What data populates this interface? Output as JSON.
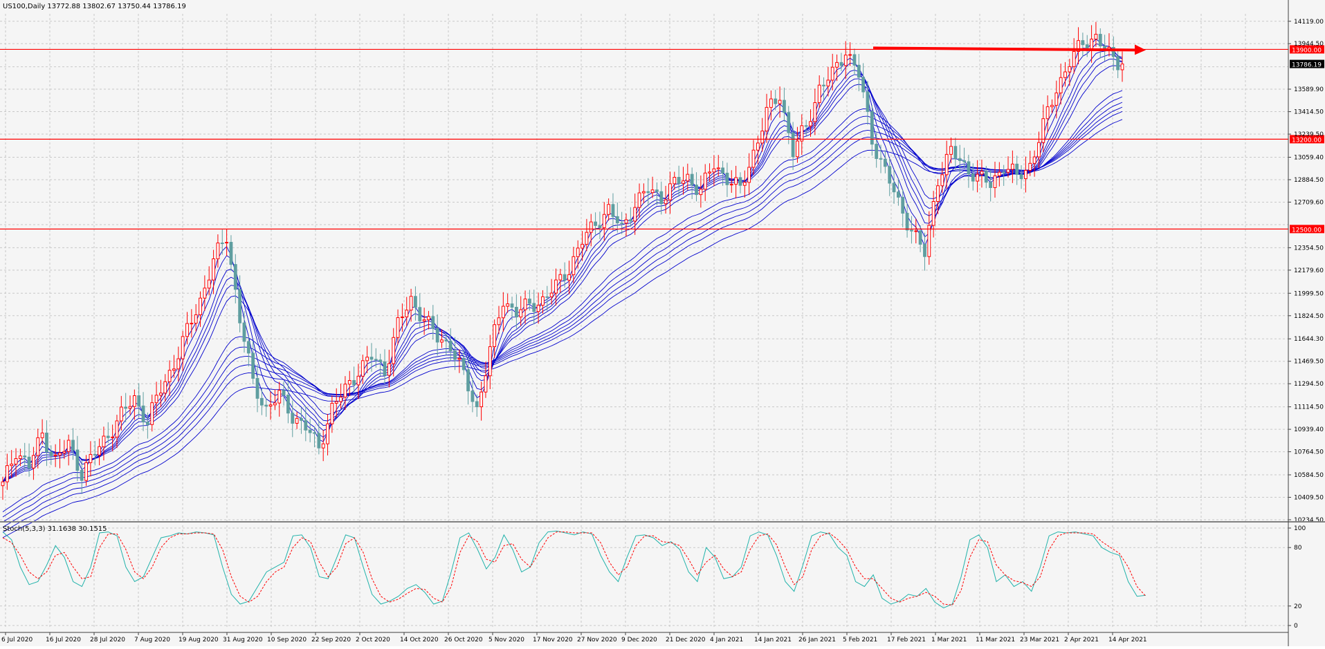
{
  "header": {
    "symbol_line": "US100,Daily  13772.88 13802.67 13750.44 13786.19"
  },
  "stoch_header": "Stoch(5,3,3) 31.1638 30.1515",
  "colors": {
    "background": "#f5f5f5",
    "grid": "#c8c8c8",
    "bull_candle": "#ff0000",
    "bear_candle": "#5f9ea0",
    "ma_lines": "#0000cc",
    "level_lines": "#ff0000",
    "stoch_main": "#20b2aa",
    "stoch_signal": "#ff0000"
  },
  "chart_data": [
    {
      "type": "candlestick",
      "title": "US100,Daily",
      "ylim": [
        10234.5,
        14150
      ],
      "y_ticks": [
        "14119.00",
        "13944.50",
        "13764.40",
        "13589.90",
        "13414.50",
        "13239.50",
        "13059.40",
        "12884.50",
        "12709.60",
        "12534.40",
        "12354.50",
        "12179.60",
        "11999.50",
        "11824.50",
        "11644.30",
        "11469.50",
        "11294.50",
        "11114.50",
        "10939.40",
        "10764.50",
        "10584.50",
        "10409.50",
        "10234.50"
      ],
      "x_ticks": [
        "6 Jul 2020",
        "16 Jul 2020",
        "28 Jul 2020",
        "7 Aug 2020",
        "19 Aug 2020",
        "31 Aug 2020",
        "10 Sep 2020",
        "22 Sep 2020",
        "2 Oct 2020",
        "14 Oct 2020",
        "26 Oct 2020",
        "5 Nov 2020",
        "17 Nov 2020",
        "27 Nov 2020",
        "9 Dec 2020",
        "21 Dec 2020",
        "4 Jan 2021",
        "14 Jan 2021",
        "26 Jan 2021",
        "5 Feb 2021",
        "17 Feb 2021",
        "1 Mar 2021",
        "11 Mar 2021",
        "23 Mar 2021",
        "2 Apr 2021",
        "14 Apr 2021"
      ],
      "price_path": [
        10500,
        10780,
        10650,
        10900,
        10700,
        10820,
        10600,
        10750,
        10900,
        11050,
        11180,
        11000,
        11250,
        11450,
        11700,
        11950,
        12250,
        12450,
        11800,
        11300,
        11100,
        11200,
        11050,
        10950,
        10800,
        11100,
        11250,
        11400,
        11500,
        11400,
        11750,
        11950,
        11800,
        11650,
        11600,
        11350,
        11100,
        11550,
        11950,
        11850,
        11900,
        11950,
        12050,
        12200,
        12400,
        12550,
        12650,
        12500,
        12700,
        12800,
        12750,
        12850,
        12900,
        12800,
        13000,
        12900,
        12800,
        13100,
        13400,
        13550,
        13100,
        13300,
        13600,
        13700,
        13900,
        13700,
        13200,
        12950,
        12700,
        12500,
        12300,
        12900,
        13100,
        13000,
        12900,
        12850,
        13000,
        12900,
        13000,
        13300,
        13600,
        13800,
        13950,
        14000,
        13850,
        13786.19
      ],
      "levels": [
        {
          "label": "13900.00",
          "value": 13900
        },
        {
          "label": "13200.00",
          "value": 13200
        },
        {
          "label": "12500.00",
          "value": 12500
        }
      ],
      "last_price": {
        "label": "13786.19",
        "value": 13786.19
      },
      "ema_periods": [
        3,
        5,
        8,
        10,
        12,
        15,
        30,
        35,
        40,
        45,
        50,
        60
      ]
    },
    {
      "type": "line",
      "title": "Stoch(5,3,3) 31.1638 30.1515",
      "ylim": [
        0,
        100
      ],
      "y_ticks": [
        "100",
        "80",
        "20",
        "0"
      ],
      "series": [
        {
          "name": "main",
          "values": [
            96,
            88,
            60,
            42,
            45,
            62,
            82,
            70,
            45,
            40,
            60,
            95,
            96,
            92,
            60,
            45,
            50,
            70,
            90,
            92,
            95,
            94,
            96,
            95,
            93,
            60,
            32,
            22,
            25,
            40,
            55,
            60,
            65,
            92,
            93,
            80,
            50,
            48,
            70,
            93,
            90,
            60,
            32,
            22,
            25,
            30,
            38,
            42,
            34,
            22,
            25,
            55,
            90,
            95,
            78,
            58,
            70,
            93,
            78,
            55,
            60,
            85,
            96,
            97,
            95,
            93,
            96,
            94,
            72,
            55,
            45,
            70,
            92,
            93,
            90,
            82,
            86,
            78,
            55,
            45,
            80,
            70,
            48,
            50,
            60,
            92,
            96,
            93,
            72,
            45,
            35,
            62,
            92,
            96,
            94,
            80,
            72,
            45,
            40,
            52,
            28,
            22,
            25,
            32,
            30,
            38,
            24,
            18,
            22,
            50,
            88,
            93,
            80,
            45,
            52,
            40,
            45,
            35,
            60,
            92,
            96,
            95,
            96,
            94,
            92,
            80,
            75,
            72,
            45,
            30,
            31
          ]
        },
        {
          "name": "signal",
          "values": [
            90,
            85,
            72,
            55,
            48,
            55,
            72,
            75,
            60,
            48,
            50,
            80,
            94,
            94,
            78,
            55,
            48,
            60,
            80,
            90,
            94,
            94,
            95,
            95,
            94,
            78,
            50,
            30,
            24,
            30,
            45,
            55,
            60,
            80,
            90,
            86,
            65,
            50,
            60,
            84,
            90,
            75,
            48,
            30,
            24,
            27,
            33,
            38,
            37,
            28,
            24,
            40,
            75,
            92,
            86,
            68,
            65,
            82,
            84,
            68,
            60,
            75,
            90,
            96,
            96,
            95,
            95,
            95,
            85,
            65,
            52,
            60,
            82,
            92,
            92,
            86,
            85,
            82,
            68,
            52,
            65,
            72,
            58,
            50,
            55,
            78,
            92,
            94,
            83,
            60,
            42,
            50,
            78,
            92,
            95,
            88,
            78,
            60,
            48,
            48,
            38,
            28,
            24,
            28,
            30,
            34,
            30,
            22,
            21,
            36,
            70,
            88,
            86,
            62,
            52,
            46,
            44,
            40,
            50,
            78,
            92,
            95,
            95,
            95,
            94,
            86,
            80,
            74,
            60,
            40,
            30
          ]
        }
      ]
    }
  ]
}
